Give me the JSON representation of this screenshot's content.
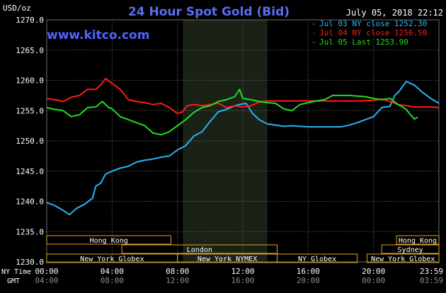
{
  "header": {
    "title": "24 Hour Spot Gold (Bid)",
    "unit": "USD/oz",
    "timestamp": "July 05, 2018 22:12",
    "site": "www.kitco.com"
  },
  "colors": {
    "background": "#000000",
    "plot_background": "#000000",
    "nymex_band": "#1a2116",
    "grid": "#6b6b6b",
    "axis_text": "#ffffff",
    "title": "#5b6ef0",
    "site": "#4f63ff",
    "session_bar": "#e0a420",
    "jul03": "#27b4f5",
    "jul04": "#ff1a1a",
    "jul05": "#1ee01e"
  },
  "legend": [
    {
      "label": "Jul 03 NY close 1252.30",
      "color": "#27b4f5"
    },
    {
      "label": "Jul 04 NY close 1256.50",
      "color": "#ff1a1a"
    },
    {
      "label": "Jul 05 Last 1253.90",
      "color": "#1ee01e"
    }
  ],
  "sessions": [
    {
      "label": "Hong Kong",
      "start": 0,
      "end": 7.6,
      "row": 0
    },
    {
      "label": "London",
      "start": 4.6,
      "end": 14.1,
      "row": 1
    },
    {
      "label": "New York Globex",
      "start": 0,
      "end": 8.0,
      "row": 2
    },
    {
      "label": "New York NYMEX",
      "start": 8.0,
      "end": 14.1,
      "row": 2
    },
    {
      "label": "NY Globex",
      "start": 14.1,
      "end": 19.0,
      "row": 2
    },
    {
      "label": "Hong Kong",
      "start": 21.4,
      "end": 24,
      "row": 0
    },
    {
      "label": "Sydney",
      "start": 20.5,
      "end": 24,
      "row": 1
    },
    {
      "label": "New York Globex",
      "start": 19.6,
      "end": 24,
      "row": 2
    }
  ],
  "x_axis": {
    "row1_label": "NY Time",
    "row2_label": "GMT",
    "ticks_ny": [
      "00:00",
      "04:00",
      "08:00",
      "12:00",
      "16:00",
      "20:00",
      "23:59"
    ],
    "ticks_gmt": [
      "04:00",
      "08:00",
      "12:00",
      "16:00",
      "20:00",
      "00:00",
      "03:59"
    ]
  },
  "chart_data": {
    "type": "line",
    "title": "24 Hour Spot Gold (Bid)",
    "ylabel": "USD/oz",
    "xlabel": "NY Time",
    "xlim": [
      0,
      24
    ],
    "ylim": [
      1230,
      1270
    ],
    "y_ticks": [
      "1230.0",
      "1235.0",
      "1240.0",
      "1245.0",
      "1250.0",
      "1255.0",
      "1260.0",
      "1265.0",
      "1270.0"
    ],
    "y_tick_values": [
      1230,
      1235,
      1240,
      1245,
      1250,
      1255,
      1260,
      1265,
      1270
    ],
    "x_ticks_ny": [
      "00:00",
      "04:00",
      "08:00",
      "12:00",
      "16:00",
      "20:00",
      "23:59"
    ],
    "x_tick_values": [
      0,
      4,
      8,
      12,
      16,
      20,
      24
    ],
    "nymex_band_hours": [
      8.33,
      13.5
    ],
    "grid": true,
    "legend_position": "top-right",
    "series": [
      {
        "name": "Jul 03 NY close 1252.30",
        "color": "#27b4f5",
        "x": [
          0,
          0.5,
          1.0,
          1.4,
          1.8,
          2.3,
          2.8,
          3.0,
          3.3,
          3.6,
          4.0,
          4.5,
          5.0,
          5.5,
          6.0,
          6.5,
          7.0,
          7.5,
          8.0,
          8.5,
          9.0,
          9.5,
          10.0,
          10.5,
          11.0,
          11.5,
          11.8,
          12.2,
          12.6,
          13.0,
          13.5,
          14.0,
          14.5,
          15.0,
          15.5,
          16.0,
          17.0,
          18.0,
          18.5,
          19.0,
          19.5,
          20.0,
          20.5,
          21.0,
          21.3,
          21.6,
          22.0,
          22.5,
          23.0,
          23.5,
          24.0
        ],
        "values": [
          1239.8,
          1239.3,
          1238.5,
          1237.8,
          1238.8,
          1239.5,
          1240.5,
          1242.5,
          1243.0,
          1244.5,
          1245.0,
          1245.5,
          1245.8,
          1246.5,
          1246.8,
          1247.0,
          1247.3,
          1247.5,
          1248.5,
          1249.2,
          1250.8,
          1251.5,
          1253.2,
          1254.8,
          1255.2,
          1255.8,
          1256.0,
          1256.2,
          1254.5,
          1253.5,
          1252.8,
          1252.6,
          1252.4,
          1252.5,
          1252.4,
          1252.3,
          1252.3,
          1252.3,
          1252.6,
          1253.0,
          1253.5,
          1254.0,
          1255.5,
          1255.7,
          1257.5,
          1258.3,
          1259.8,
          1259.2,
          1258.0,
          1257.0,
          1256.2
        ]
      },
      {
        "name": "Jul 04 NY close 1256.50",
        "color": "#ff1a1a",
        "x": [
          0,
          0.5,
          1.0,
          1.5,
          2.0,
          2.5,
          3.0,
          3.3,
          3.6,
          4.0,
          4.5,
          5.0,
          5.5,
          6.0,
          6.5,
          7.0,
          7.5,
          8.0,
          8.3,
          8.6,
          9.0,
          9.5,
          10.0,
          10.5,
          11.0,
          11.5,
          12.0,
          12.5,
          13.0,
          13.5,
          14.0,
          15.0,
          16.0,
          17.0,
          18.0,
          19.0,
          20.0,
          20.5,
          21.0,
          21.5,
          22.0,
          22.5,
          23.0,
          23.5,
          24.0
        ],
        "values": [
          1257.0,
          1256.8,
          1256.5,
          1257.2,
          1257.5,
          1258.5,
          1258.5,
          1259.2,
          1260.3,
          1259.5,
          1258.5,
          1256.8,
          1256.5,
          1256.3,
          1256.0,
          1256.2,
          1255.5,
          1254.5,
          1254.8,
          1255.8,
          1256.0,
          1255.8,
          1256.0,
          1256.2,
          1255.5,
          1255.8,
          1255.6,
          1255.8,
          1256.4,
          1256.6,
          1256.6,
          1256.6,
          1256.6,
          1256.6,
          1256.6,
          1256.6,
          1256.7,
          1256.9,
          1256.5,
          1256.0,
          1255.8,
          1255.6,
          1255.6,
          1255.6,
          1255.5
        ]
      },
      {
        "name": "Jul 05 Last 1253.90",
        "color": "#1ee01e",
        "x": [
          0,
          0.5,
          1.0,
          1.5,
          2.0,
          2.5,
          3.0,
          3.4,
          3.8,
          4.0,
          4.5,
          5.0,
          5.5,
          6.0,
          6.5,
          7.0,
          7.5,
          8.0,
          8.5,
          9.0,
          9.5,
          10.0,
          10.5,
          11.0,
          11.5,
          11.8,
          12.0,
          12.5,
          13.0,
          13.5,
          14.0,
          14.5,
          15.0,
          15.5,
          16.0,
          16.5,
          17.0,
          17.5,
          18.0,
          18.5,
          19.0,
          19.5,
          20.0,
          20.5,
          21.0,
          21.5,
          22.0,
          22.2,
          22.5,
          22.7
        ],
        "values": [
          1255.5,
          1255.2,
          1255.0,
          1254.0,
          1254.3,
          1255.5,
          1255.6,
          1256.5,
          1255.5,
          1255.3,
          1254.0,
          1253.5,
          1253.0,
          1252.5,
          1251.3,
          1251.0,
          1251.5,
          1252.5,
          1253.5,
          1254.7,
          1255.5,
          1255.8,
          1256.5,
          1256.8,
          1257.3,
          1258.5,
          1257.0,
          1256.8,
          1256.5,
          1256.3,
          1256.2,
          1255.3,
          1255.0,
          1256.0,
          1256.3,
          1256.6,
          1256.8,
          1257.5,
          1257.5,
          1257.5,
          1257.4,
          1257.3,
          1257.0,
          1256.8,
          1257.0,
          1256.0,
          1255.2,
          1254.5,
          1253.6,
          1253.9
        ]
      }
    ]
  }
}
